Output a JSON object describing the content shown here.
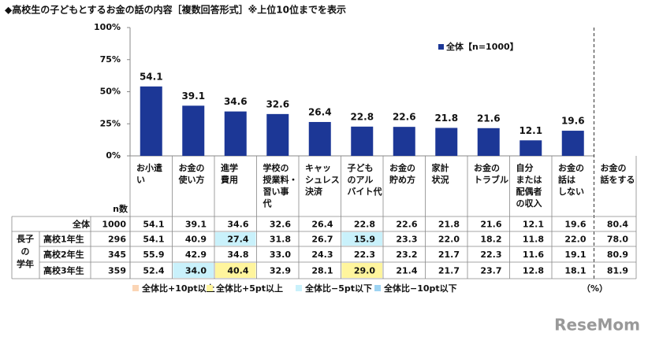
{
  "chart_data": {
    "type": "bar",
    "title": "◆高校生の子どもとするお金の話の内容［複数回答形式］※上位10位までを表示",
    "legend_label": "全体【n=1000】",
    "color": "#1c3796",
    "categories": [
      [
        "お小遣",
        "い"
      ],
      [
        "お金の",
        "使い方"
      ],
      [
        "進学",
        "費用"
      ],
      [
        "学校の",
        "授業料・",
        "習い事",
        "代"
      ],
      [
        "キャッ",
        "シュレス",
        "決済"
      ],
      [
        "子ども",
        "のアル",
        "バイト代"
      ],
      [
        "お金の",
        "貯め方"
      ],
      [
        "家計",
        "状況"
      ],
      [
        "お金の",
        "トラブル"
      ],
      [
        "自分",
        "または",
        "配偶者",
        "の収入"
      ],
      [
        "お金の",
        "話は",
        "しない"
      ]
    ],
    "values": [
      54.1,
      39.1,
      34.6,
      32.6,
      26.4,
      22.8,
      22.6,
      21.8,
      21.6,
      12.1,
      19.6
    ],
    "ylim": [
      0,
      100
    ],
    "yticks": [
      {
        "value": 0,
        "label": "0%"
      },
      {
        "value": 25,
        "label": "25%"
      },
      {
        "value": 50,
        "label": "50%"
      },
      {
        "value": 75,
        "label": "75%"
      },
      {
        "value": 100,
        "label": "100%"
      }
    ]
  },
  "table": {
    "n_header": "n数",
    "group_label": [
      "長子",
      "の",
      "学年"
    ],
    "extra_header": [
      "お金の",
      "話をする"
    ],
    "rows": [
      {
        "label": "全体",
        "n": 1000,
        "values": [
          54.1,
          39.1,
          34.6,
          32.6,
          26.4,
          22.8,
          22.6,
          21.8,
          21.6,
          12.1,
          19.6,
          80.4
        ],
        "fills": [
          null,
          null,
          null,
          null,
          null,
          null,
          null,
          null,
          null,
          null,
          null,
          null
        ]
      },
      {
        "label": "高校1年生",
        "n": 296,
        "values": [
          54.1,
          40.9,
          27.4,
          31.8,
          26.7,
          15.9,
          23.3,
          22.0,
          18.2,
          11.8,
          22.0,
          78.0
        ],
        "value_labels": [
          "54.1",
          "40.9",
          "27.4",
          "31.8",
          "26.7",
          "15.9",
          "23.3",
          "22.0",
          "18.2",
          "11.8",
          "22.0",
          "78.0"
        ],
        "fills": [
          null,
          null,
          "#c9f1fb",
          null,
          null,
          "#c9f1fb",
          null,
          null,
          null,
          null,
          null,
          null
        ]
      },
      {
        "label": "高校2年生",
        "n": 345,
        "values": [
          55.9,
          42.9,
          34.8,
          33.0,
          24.3,
          22.3,
          23.2,
          21.7,
          22.3,
          11.6,
          19.1,
          80.9
        ],
        "value_labels": [
          "55.9",
          "42.9",
          "34.8",
          "33.0",
          "24.3",
          "22.3",
          "23.2",
          "21.7",
          "22.3",
          "11.6",
          "19.1",
          "80.9"
        ],
        "fills": [
          null,
          null,
          null,
          null,
          null,
          null,
          null,
          null,
          null,
          null,
          null,
          null
        ]
      },
      {
        "label": "高校3年生",
        "n": 359,
        "values": [
          52.4,
          34.0,
          40.4,
          32.9,
          28.1,
          29.0,
          21.4,
          21.7,
          23.7,
          12.8,
          18.1,
          81.9
        ],
        "value_labels": [
          "52.4",
          "34.0",
          "40.4",
          "32.9",
          "28.1",
          "29.0",
          "21.4",
          "21.7",
          "23.7",
          "12.8",
          "18.1",
          "81.9"
        ],
        "fills": [
          null,
          "#c9f1fb",
          "#fff59d",
          null,
          null,
          "#fff59d",
          null,
          null,
          null,
          null,
          null,
          null
        ]
      }
    ],
    "legend": [
      {
        "label": "全体比+10pt以上",
        "color": "#fbd5b5"
      },
      {
        "label": "全体比+5pt以上",
        "color": "#fff59d"
      },
      {
        "label": "全体比−5pt以下",
        "color": "#c9f1fb"
      },
      {
        "label": "全体比−10pt以下",
        "color": "#9dd3f2"
      }
    ],
    "unit": "（%）"
  },
  "watermark": "ReseMom"
}
